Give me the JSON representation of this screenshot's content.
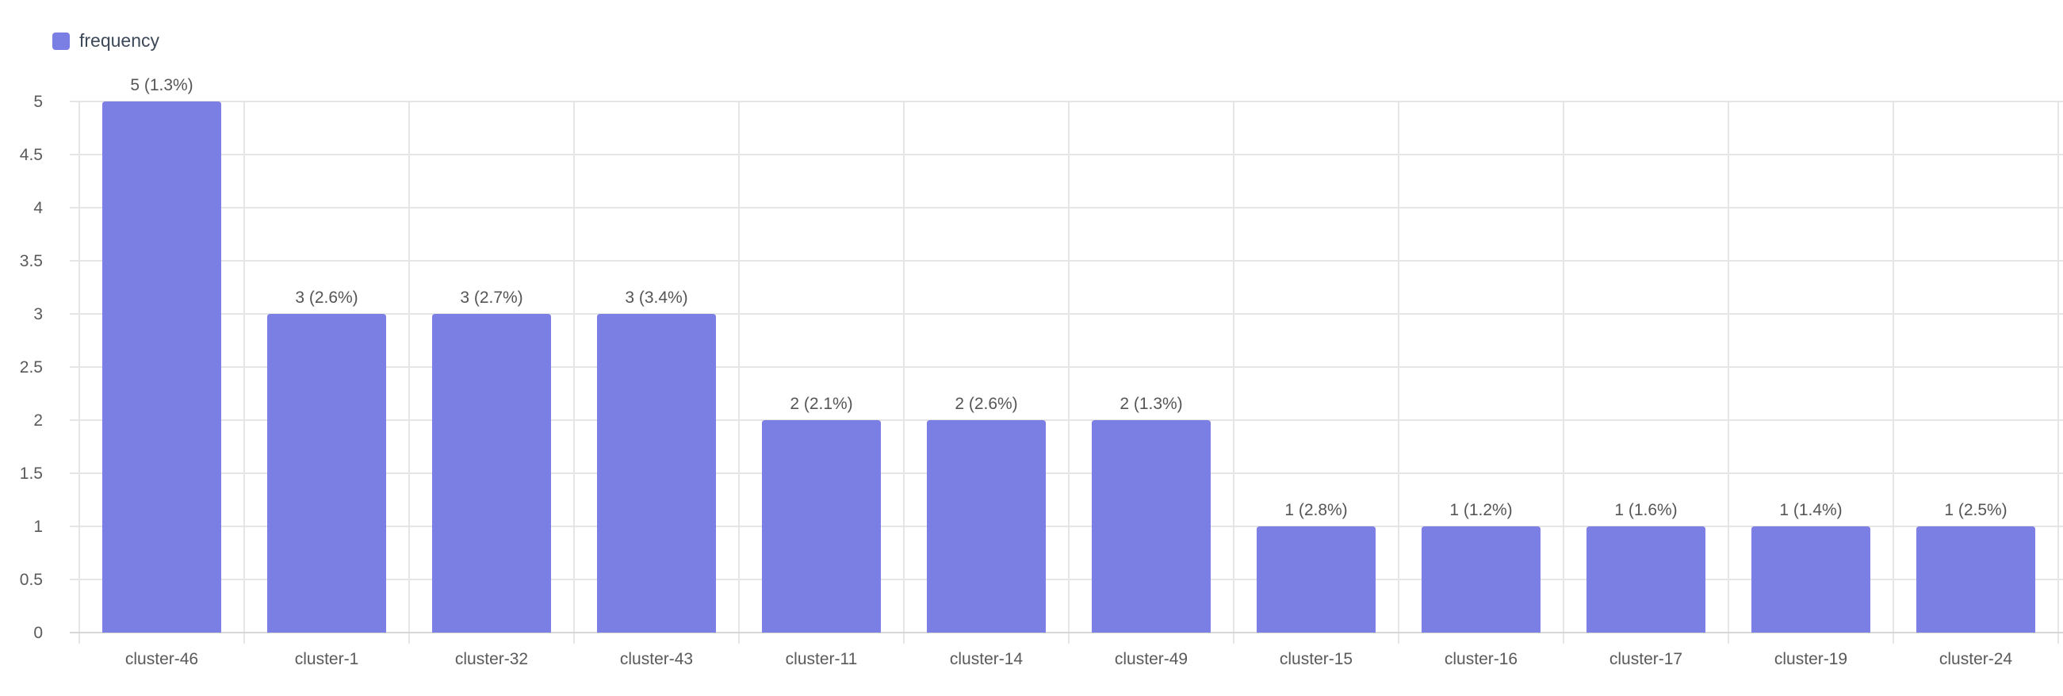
{
  "chart_data": {
    "type": "bar",
    "title": "",
    "xlabel": "",
    "ylabel": "",
    "legend": {
      "position": "top-left",
      "entries": [
        "frequency"
      ]
    },
    "grid": true,
    "ylim": [
      0,
      5
    ],
    "yticks": [
      "0",
      "0.5",
      "1",
      "1.5",
      "2",
      "2.5",
      "3",
      "3.5",
      "4",
      "4.5",
      "5"
    ],
    "categories": [
      "cluster-46",
      "cluster-1",
      "cluster-32",
      "cluster-43",
      "cluster-11",
      "cluster-14",
      "cluster-49",
      "cluster-15",
      "cluster-16",
      "cluster-17",
      "cluster-19",
      "cluster-24"
    ],
    "series": [
      {
        "name": "frequency",
        "color": "#7b7ee3",
        "values": [
          5,
          3,
          3,
          3,
          2,
          2,
          2,
          1,
          1,
          1,
          1,
          1
        ],
        "labels": [
          "5 (1.3%)",
          "3 (2.6%)",
          "3 (2.7%)",
          "3 (3.4%)",
          "2 (2.1%)",
          "2 (2.6%)",
          "2 (1.3%)",
          "1 (2.8%)",
          "1 (1.2%)",
          "1 (1.6%)",
          "1 (1.4%)",
          "1 (2.5%)"
        ]
      }
    ]
  }
}
